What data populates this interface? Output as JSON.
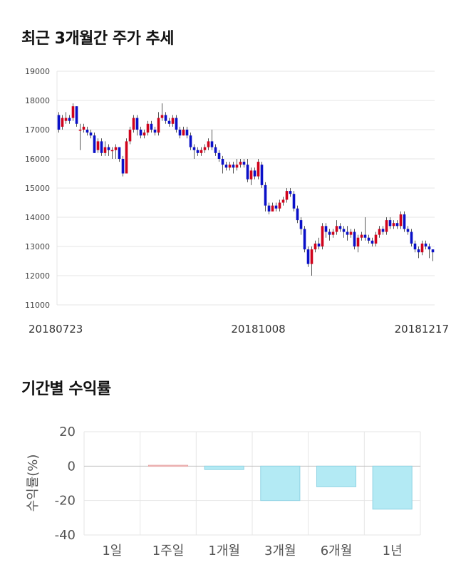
{
  "section1_title": "최근 3개월간 주가 추세",
  "section2_title": "기간별 수익률",
  "colors": {
    "up": "#d0021b",
    "down": "#0a10c8",
    "grid": "#e6e6e6",
    "bar_fill": "#b3eaf4",
    "bar_stroke": "#8fd3e3",
    "bar_pos_fill": "#f6c8c8"
  },
  "chart_data": [
    {
      "type": "candlestick",
      "title": "최근 3개월간 주가 추세",
      "ylim": [
        11000,
        19000
      ],
      "yticks": [
        "19000",
        "18000",
        "17000",
        "16000",
        "15000",
        "14000",
        "13000",
        "12000",
        "11000"
      ],
      "xlabels": [
        {
          "index": 0,
          "label": "20180723"
        },
        {
          "index": 56,
          "label": "20181008"
        },
        {
          "index": 104,
          "label": "20181217"
        }
      ],
      "candles": [
        [
          17500,
          17000,
          17600,
          16900
        ],
        [
          17100,
          17400,
          17500,
          17000
        ],
        [
          17300,
          17400,
          17600,
          17200
        ],
        [
          17400,
          17300,
          17500,
          17200
        ],
        [
          17400,
          17800,
          17900,
          17300
        ],
        [
          17800,
          17200,
          17800,
          17100
        ],
        [
          17000,
          17000,
          17200,
          16300
        ],
        [
          17000,
          17100,
          17200,
          16900
        ],
        [
          17000,
          16900,
          17100,
          16800
        ],
        [
          16900,
          16800,
          17000,
          16700
        ],
        [
          16800,
          16200,
          16900,
          16200
        ],
        [
          16300,
          16600,
          16700,
          16200
        ],
        [
          16600,
          16200,
          16700,
          16100
        ],
        [
          16200,
          16400,
          16600,
          16100
        ],
        [
          16400,
          16300,
          16500,
          16100
        ],
        [
          16300,
          16300,
          16400,
          16000
        ],
        [
          16300,
          16400,
          16500,
          16000
        ],
        [
          16400,
          16000,
          16400,
          15900
        ],
        [
          16000,
          15500,
          16100,
          15400
        ],
        [
          15500,
          16600,
          16700,
          15500
        ],
        [
          16600,
          17000,
          17100,
          16500
        ],
        [
          17000,
          17400,
          17500,
          16900
        ],
        [
          17400,
          17000,
          17500,
          16800
        ],
        [
          17000,
          16800,
          17100,
          16700
        ],
        [
          16800,
          16900,
          17000,
          16700
        ],
        [
          16900,
          17200,
          17300,
          16800
        ],
        [
          17200,
          17000,
          17300,
          16900
        ],
        [
          17000,
          16900,
          17100,
          16800
        ],
        [
          16900,
          17400,
          17600,
          16800
        ],
        [
          17400,
          17500,
          17900,
          17300
        ],
        [
          17500,
          17300,
          17600,
          17200
        ],
        [
          17300,
          17200,
          17400,
          17100
        ],
        [
          17200,
          17400,
          17500,
          17100
        ],
        [
          17400,
          17000,
          17500,
          16900
        ],
        [
          17000,
          16800,
          17100,
          16700
        ],
        [
          16800,
          17000,
          17100,
          16800
        ],
        [
          17000,
          16800,
          17100,
          16700
        ],
        [
          16800,
          16400,
          16900,
          16300
        ],
        [
          16400,
          16300,
          16500,
          16000
        ],
        [
          16300,
          16200,
          16400,
          16100
        ],
        [
          16200,
          16300,
          16400,
          16100
        ],
        [
          16300,
          16400,
          16500,
          16200
        ],
        [
          16400,
          16600,
          16700,
          16300
        ],
        [
          16600,
          16400,
          17000,
          16300
        ],
        [
          16400,
          16200,
          16500,
          16100
        ],
        [
          16200,
          16000,
          16300,
          15900
        ],
        [
          16000,
          15800,
          16100,
          15500
        ],
        [
          15800,
          15700,
          15900,
          15600
        ],
        [
          15700,
          15800,
          15900,
          15600
        ],
        [
          15800,
          15700,
          15900,
          15500
        ],
        [
          15700,
          15800,
          16000,
          15600
        ],
        [
          15800,
          15900,
          16000,
          15700
        ],
        [
          15900,
          15800,
          16000,
          15700
        ],
        [
          15800,
          15300,
          16000,
          15200
        ],
        [
          15300,
          15600,
          15700,
          15100
        ],
        [
          15600,
          15400,
          15700,
          15300
        ],
        [
          15400,
          15900,
          16000,
          15300
        ],
        [
          15800,
          15100,
          15900,
          15000
        ],
        [
          15100,
          14400,
          15200,
          14200
        ],
        [
          14400,
          14200,
          14500,
          14100
        ],
        [
          14200,
          14400,
          14500,
          14300
        ],
        [
          14400,
          14300,
          14500,
          14200
        ],
        [
          14300,
          14500,
          14600,
          14200
        ],
        [
          14500,
          14600,
          14700,
          14400
        ],
        [
          14600,
          14900,
          15000,
          14500
        ],
        [
          14900,
          14800,
          15000,
          14700
        ],
        [
          14800,
          14300,
          14900,
          14200
        ],
        [
          14300,
          13900,
          14400,
          13800
        ],
        [
          13900,
          13600,
          14000,
          13400
        ],
        [
          13600,
          12900,
          13700,
          12800
        ],
        [
          12900,
          12400,
          13000,
          12300
        ],
        [
          12400,
          12900,
          13000,
          12000
        ],
        [
          12900,
          13100,
          13200,
          12800
        ],
        [
          13100,
          13000,
          13300,
          12900
        ],
        [
          13000,
          13700,
          13800,
          12900
        ],
        [
          13700,
          13500,
          13800,
          13300
        ],
        [
          13500,
          13400,
          13600,
          13200
        ],
        [
          13400,
          13500,
          13600,
          13300
        ],
        [
          13500,
          13700,
          13900,
          13400
        ],
        [
          13700,
          13600,
          13800,
          13500
        ],
        [
          13600,
          13500,
          13700,
          13300
        ],
        [
          13500,
          13400,
          13700,
          13200
        ],
        [
          13400,
          13500,
          13600,
          13300
        ],
        [
          13500,
          13000,
          13600,
          12900
        ],
        [
          13000,
          13300,
          13400,
          12800
        ],
        [
          13300,
          13400,
          13500,
          13200
        ],
        [
          13400,
          13300,
          14000,
          13200
        ],
        [
          13300,
          13200,
          13400,
          13100
        ],
        [
          13200,
          13100,
          13300,
          13000
        ],
        [
          13100,
          13400,
          13500,
          13000
        ],
        [
          13400,
          13600,
          13700,
          13300
        ],
        [
          13600,
          13500,
          13700,
          13400
        ],
        [
          13500,
          13900,
          14000,
          13400
        ],
        [
          13900,
          13700,
          14000,
          13600
        ],
        [
          13700,
          13800,
          13900,
          13600
        ],
        [
          13800,
          13700,
          13900,
          13600
        ],
        [
          13700,
          14100,
          14200,
          13600
        ],
        [
          14100,
          13600,
          14200,
          13500
        ],
        [
          13600,
          13500,
          13700,
          13400
        ],
        [
          13500,
          13100,
          13600,
          13000
        ],
        [
          13100,
          12900,
          13200,
          12800
        ],
        [
          12900,
          12800,
          13000,
          12600
        ],
        [
          12800,
          13100,
          13200,
          12700
        ],
        [
          13100,
          13000,
          13200,
          12900
        ],
        [
          13000,
          12900,
          13100,
          12600
        ],
        [
          12900,
          12800,
          12900,
          12500
        ]
      ]
    },
    {
      "type": "bar",
      "title": "기간별 수익률",
      "ylabel": "수익률(%)",
      "ylim": [
        -40,
        20
      ],
      "yticks": [
        "20",
        "0",
        "-20",
        "-40"
      ],
      "categories": [
        "1일",
        "1주일",
        "1개월",
        "3개월",
        "6개월",
        "1년"
      ],
      "values": [
        0,
        0.5,
        -2,
        -20,
        -12,
        -25
      ]
    }
  ]
}
